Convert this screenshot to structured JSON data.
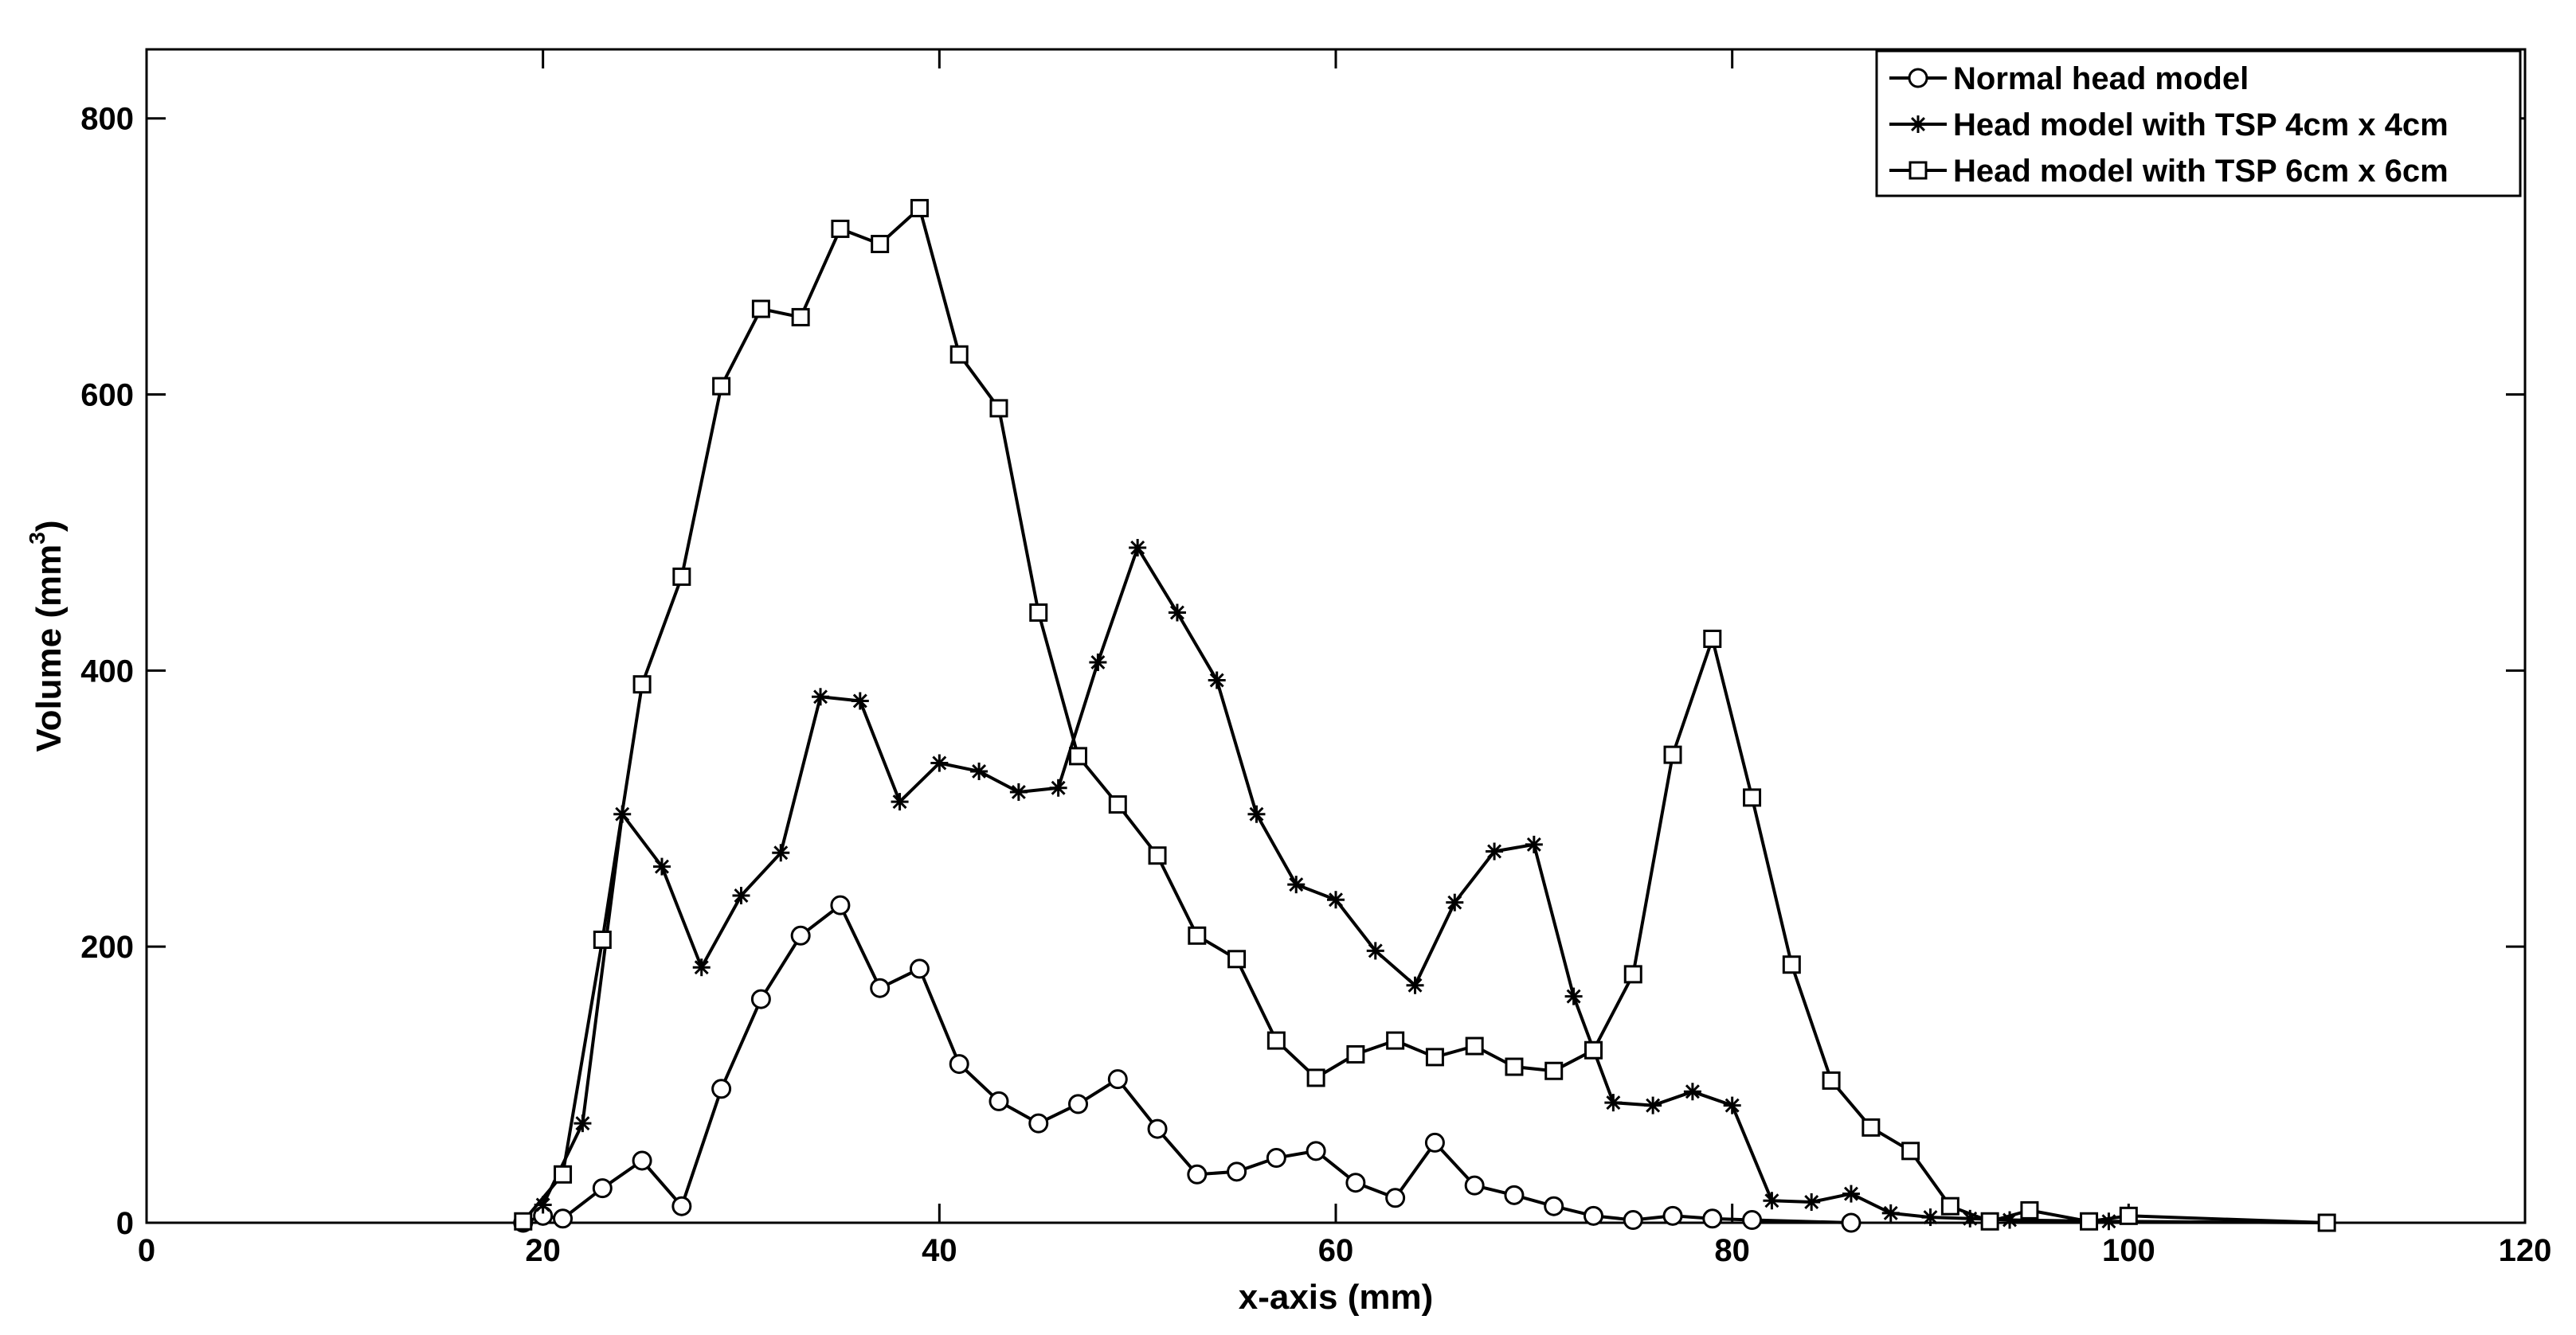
{
  "chart_data": {
    "type": "line",
    "title": "",
    "xlabel": "x-axis (mm)",
    "ylabel_main": "Volume (mm",
    "ylabel_sup": "3",
    "ylabel_close": ")",
    "xlim": [
      0,
      120
    ],
    "ylim": [
      0,
      850
    ],
    "xticks": [
      0,
      20,
      40,
      60,
      80,
      100,
      120
    ],
    "yticks": [
      0,
      200,
      400,
      600,
      800
    ],
    "grid": false,
    "legend_position": "top-right",
    "series": [
      {
        "name": "Normal head model",
        "marker": "circle",
        "x": [
          19,
          20,
          21,
          23,
          25,
          27,
          29,
          31,
          33,
          35,
          37,
          39,
          41,
          43,
          45,
          47,
          49,
          51,
          53,
          55,
          57,
          59,
          61,
          63,
          65,
          67,
          69,
          71,
          73,
          75,
          77,
          79,
          81,
          86
        ],
        "y": [
          0,
          5,
          3,
          25,
          45,
          12,
          97,
          162,
          208,
          230,
          170,
          184,
          115,
          88,
          72,
          86,
          104,
          68,
          35,
          37,
          47,
          52,
          29,
          18,
          58,
          27,
          20,
          12,
          5,
          2,
          5,
          3,
          2,
          0
        ]
      },
      {
        "name": "Head model with TSP 4cm x 4cm",
        "marker": "star",
        "x": [
          20,
          22,
          24,
          26,
          28,
          30,
          32,
          34,
          36,
          38,
          40,
          42,
          44,
          46,
          48,
          50,
          52,
          54,
          56,
          58,
          60,
          62,
          64,
          66,
          68,
          70,
          72,
          74,
          76,
          78,
          80,
          82,
          84,
          86,
          88,
          90,
          92,
          94,
          99,
          110
        ],
        "y": [
          13,
          72,
          296,
          258,
          185,
          237,
          268,
          381,
          378,
          305,
          333,
          327,
          312,
          315,
          406,
          489,
          442,
          393,
          296,
          245,
          234,
          197,
          172,
          232,
          269,
          274,
          164,
          87,
          85,
          95,
          85,
          16,
          15,
          21,
          7,
          4,
          3,
          2,
          1,
          0
        ]
      },
      {
        "name": "Head model with TSP 6cm x 6cm",
        "marker": "square",
        "x": [
          19,
          21,
          23,
          25,
          27,
          29,
          31,
          33,
          35,
          37,
          39,
          41,
          43,
          45,
          47,
          49,
          51,
          53,
          55,
          57,
          59,
          61,
          63,
          65,
          67,
          69,
          71,
          73,
          75,
          77,
          79,
          81,
          83,
          85,
          87,
          89,
          91,
          93,
          95,
          98,
          100,
          110
        ],
        "y": [
          1,
          35,
          205,
          390,
          468,
          606,
          662,
          656,
          720,
          709,
          735,
          629,
          590,
          442,
          338,
          303,
          266,
          208,
          191,
          132,
          105,
          122,
          132,
          120,
          128,
          113,
          110,
          125,
          180,
          339,
          423,
          308,
          187,
          103,
          69,
          52,
          12,
          1,
          9,
          1,
          5,
          0
        ]
      }
    ]
  }
}
